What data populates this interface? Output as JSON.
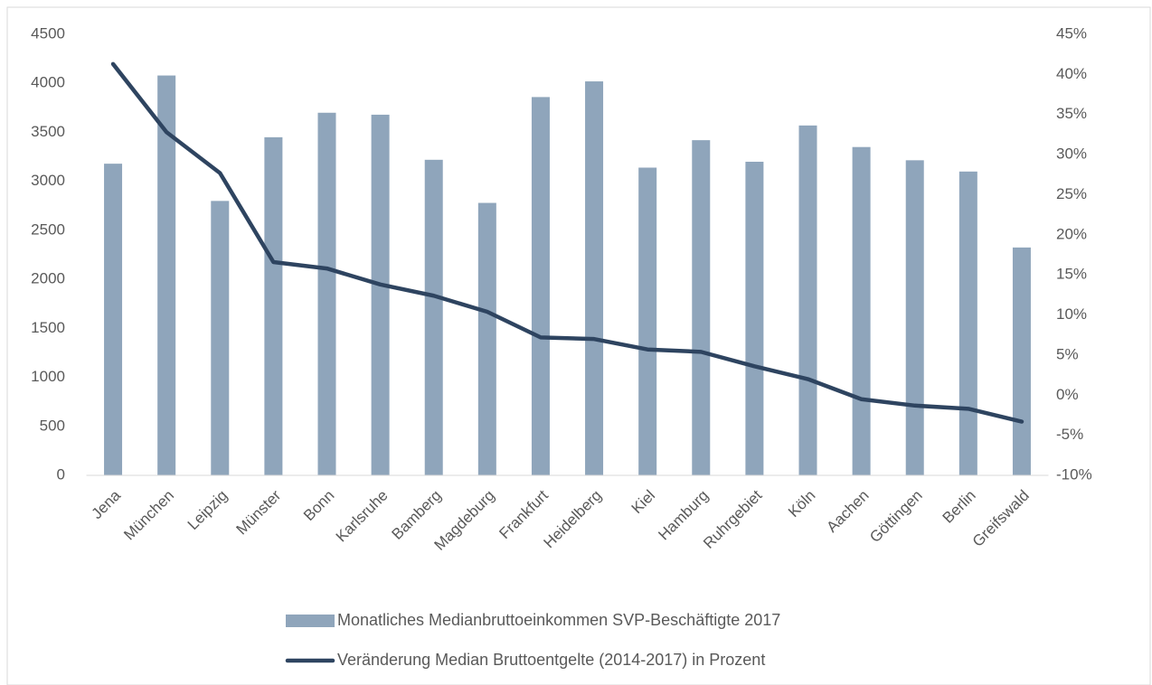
{
  "chart_data": {
    "type": "bar-line",
    "categories": [
      "Jena",
      "München",
      "Leipzig",
      "Münster",
      "Bonn",
      "Karlsruhe",
      "Bamberg",
      "Magdeburg",
      "Frankfurt",
      "Heidelberg",
      "Kiel",
      "Hamburg",
      "Ruhrgebiet",
      "Köln",
      "Aachen",
      "Göttingen",
      "Berlin",
      "Greifswald"
    ],
    "series": [
      {
        "name": "Monatliches Medianbruttoeinkommen SVP-Beschäftigte 2017",
        "type": "bar",
        "color": "#8fa5bb",
        "values": [
          3180,
          4080,
          2800,
          3450,
          3700,
          3680,
          3220,
          2780,
          3860,
          4020,
          3140,
          3420,
          3200,
          3570,
          3350,
          3215,
          3100,
          2325
        ]
      },
      {
        "name": "Veränderung Median Bruttoentgelte (2014-2017) in Prozent",
        "type": "line",
        "axis": "y2",
        "color": "#2e4460",
        "values": [
          41.3,
          32.8,
          27.7,
          16.6,
          15.8,
          13.8,
          12.4,
          10.4,
          7.2,
          7.0,
          5.7,
          5.4,
          3.6,
          2.0,
          -0.5,
          -1.3,
          -1.7,
          -3.3
        ]
      }
    ],
    "ylim": [
      0,
      4500
    ],
    "yticks": [
      0,
      500,
      1000,
      1500,
      2000,
      2500,
      3000,
      3500,
      4000,
      4500
    ],
    "y2lim": [
      -10,
      45
    ],
    "y2ticks": [
      {
        "value": -10,
        "label": "-10%"
      },
      {
        "value": -5,
        "label": "-5%"
      },
      {
        "value": 0,
        "label": "0%"
      },
      {
        "value": 5,
        "label": "5%"
      },
      {
        "value": 10,
        "label": "10%"
      },
      {
        "value": 15,
        "label": "15%"
      },
      {
        "value": 20,
        "label": "20%"
      },
      {
        "value": 25,
        "label": "25%"
      },
      {
        "value": 30,
        "label": "30%"
      },
      {
        "value": 35,
        "label": "35%"
      },
      {
        "value": 40,
        "label": "40%"
      },
      {
        "value": 45,
        "label": "45%"
      }
    ],
    "grid": false,
    "legend": "bottom"
  }
}
